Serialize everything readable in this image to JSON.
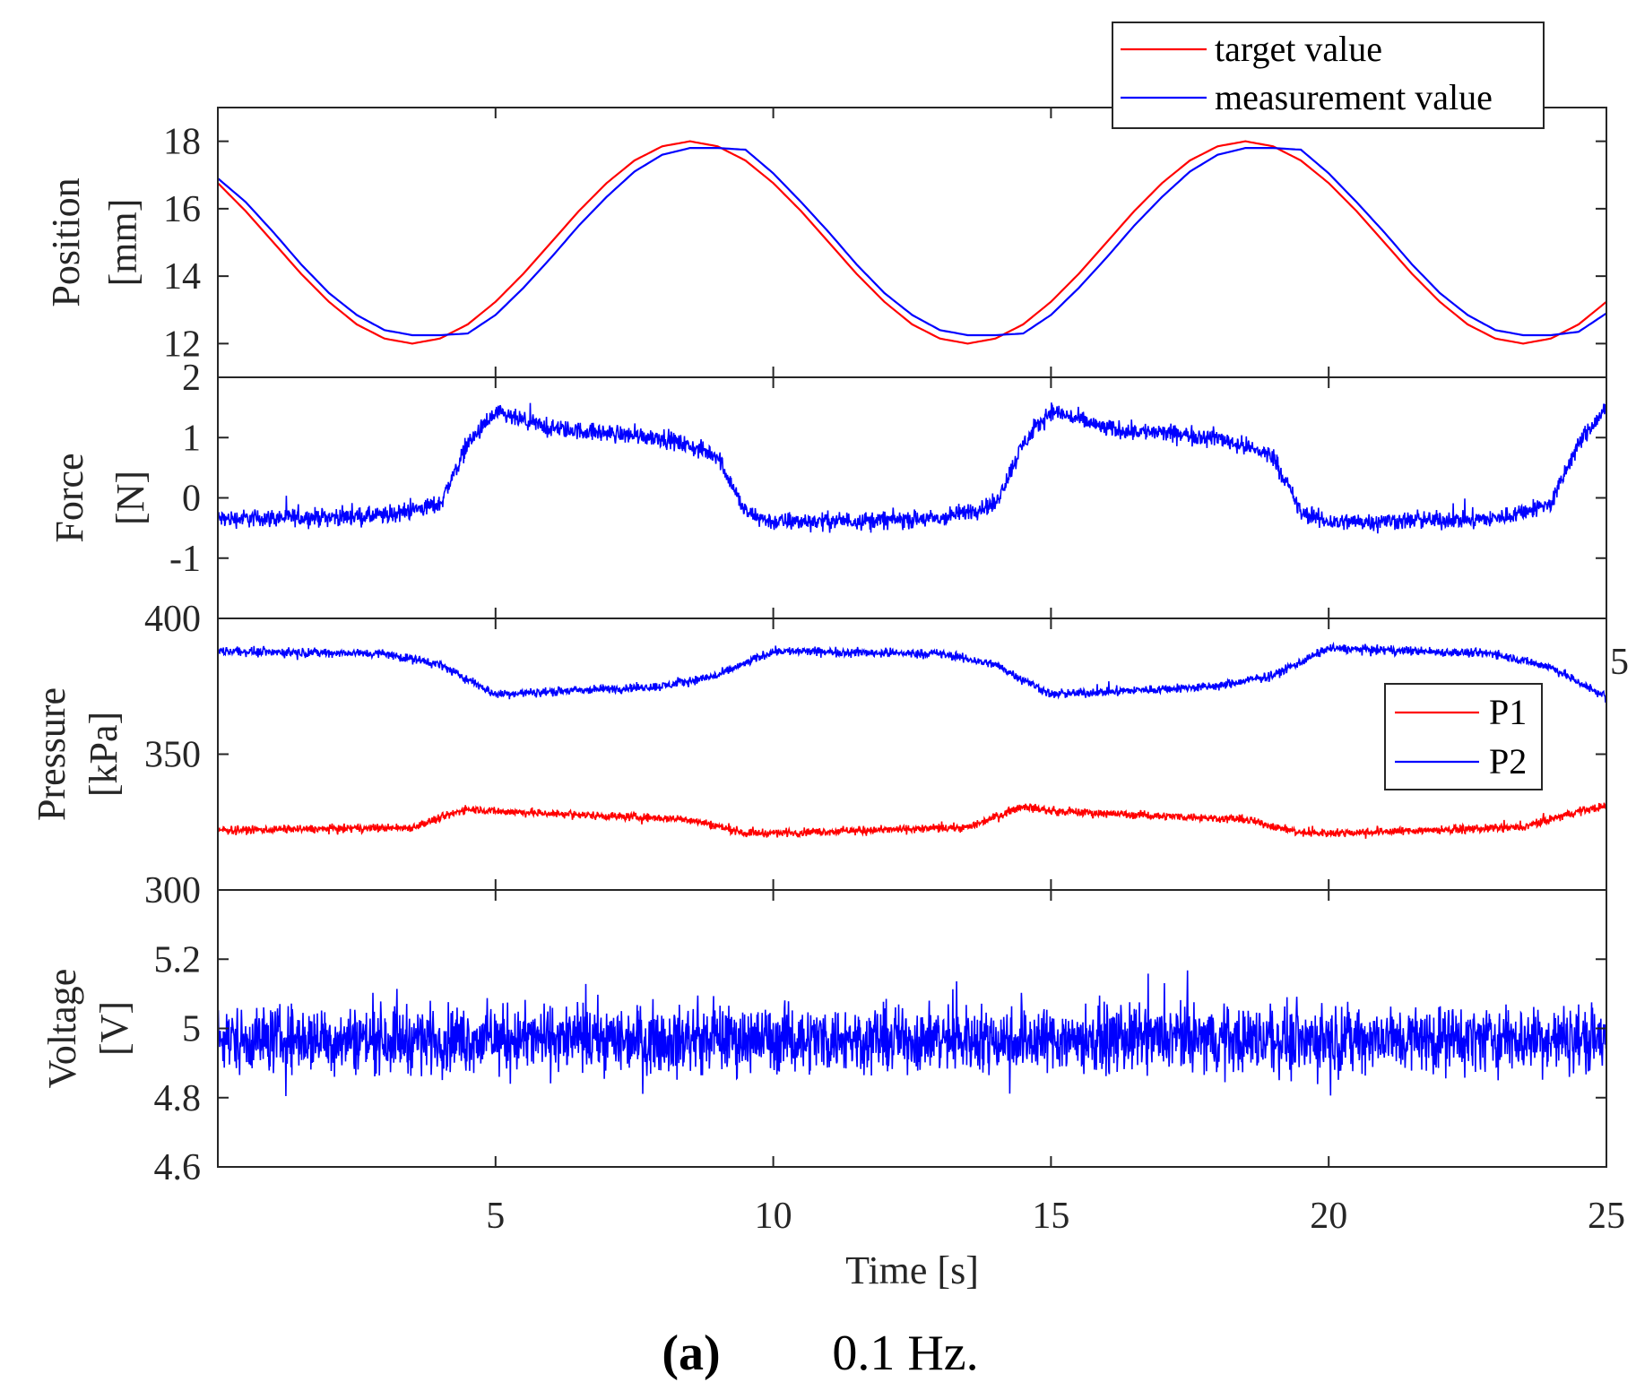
{
  "chart_data": {
    "type": "line",
    "caption": {
      "label": "(a)",
      "text": "0.1 Hz."
    },
    "xlabel": "Time [s]",
    "xlim": [
      0,
      25
    ],
    "xticks": [
      "5",
      "10",
      "15",
      "20",
      "25"
    ],
    "xtick_values": [
      5,
      10,
      15,
      20,
      25
    ],
    "stray_label": "5",
    "panels": [
      {
        "name": "position",
        "ylabel_line1": "Position",
        "ylabel_line2": "[mm]",
        "ylim": [
          11,
          19
        ],
        "yticks": [
          "12",
          "14",
          "16",
          "18"
        ],
        "ytick_values": [
          12,
          14,
          16,
          18
        ],
        "legend": {
          "placement": "top-right",
          "entries": [
            "target value",
            "measurement value"
          ]
        },
        "series": [
          {
            "name": "target value",
            "color": "#ff0000",
            "noise": 0,
            "x_step": 0.5,
            "x_start": 0,
            "values": [
              16.76,
              15.93,
              15,
              14.07,
              13.24,
              12.57,
              12.15,
              12,
              12.15,
              12.57,
              13.24,
              14.07,
              15,
              15.93,
              16.76,
              17.43,
              17.85,
              18,
              17.85,
              17.43,
              16.76,
              15.93,
              15,
              14.07,
              13.24,
              12.57,
              12.15,
              12,
              12.15,
              12.57,
              13.24,
              14.07,
              15,
              15.93,
              16.76,
              17.43,
              17.85,
              18,
              17.85,
              17.43,
              16.76,
              15.93,
              15,
              14.07,
              13.24,
              12.57,
              12.15,
              12,
              12.15,
              12.57,
              13.24
            ]
          },
          {
            "name": "measurement value",
            "color": "#0000ff",
            "noise": 0,
            "x_step": 0.5,
            "x_start": 0,
            "values": [
              16.9,
              16.2,
              15.3,
              14.35,
              13.5,
              12.85,
              12.4,
              12.25,
              12.25,
              12.3,
              12.85,
              13.65,
              14.55,
              15.5,
              16.35,
              17.1,
              17.6,
              17.8,
              17.8,
              17.75,
              17.05,
              16.2,
              15.3,
              14.35,
              13.5,
              12.85,
              12.4,
              12.25,
              12.25,
              12.3,
              12.85,
              13.65,
              14.55,
              15.5,
              16.35,
              17.1,
              17.6,
              17.8,
              17.8,
              17.75,
              17.05,
              16.2,
              15.3,
              14.35,
              13.5,
              12.85,
              12.4,
              12.25,
              12.25,
              12.35,
              12.9
            ]
          }
        ]
      },
      {
        "name": "force",
        "ylabel_line1": "Force",
        "ylabel_line2": "[N]",
        "ylim": [
          -2,
          2
        ],
        "yticks": [
          "-1",
          "0",
          "1",
          "2"
        ],
        "ytick_values": [
          -1,
          0,
          1,
          2
        ],
        "series": [
          {
            "name": "force",
            "color": "#0000ff",
            "noise": 0.22,
            "x": [
              0,
              3,
              4,
              4.5,
              5,
              6,
              8,
              9,
              9.5,
              10,
              13,
              14,
              14.5,
              15,
              16,
              18,
              19,
              19.5,
              20,
              23,
              24,
              24.5,
              25
            ],
            "values": [
              -0.35,
              -0.3,
              -0.1,
              0.9,
              1.4,
              1.15,
              1.0,
              0.7,
              -0.25,
              -0.4,
              -0.35,
              -0.1,
              0.9,
              1.45,
              1.15,
              1.0,
              0.7,
              -0.25,
              -0.4,
              -0.35,
              -0.1,
              0.9,
              1.5
            ]
          }
        ]
      },
      {
        "name": "pressure",
        "ylabel_line1": "Pressure",
        "ylabel_line2": "[kPa]",
        "ylim": [
          300,
          400
        ],
        "yticks": [
          "300",
          "350",
          "400"
        ],
        "ytick_values": [
          300,
          350,
          400
        ],
        "legend": {
          "placement": "center-right",
          "entries": [
            "P1",
            "P2"
          ]
        },
        "series": [
          {
            "name": "P1",
            "color": "#ff0000",
            "noise": 2.2,
            "x": [
              0,
              3.5,
              4.5,
              5,
              8.5,
              9.5,
              10,
              13.5,
              14.5,
              15,
              18.5,
              19.5,
              20,
              23.5,
              24.5,
              25
            ],
            "values": [
              322,
              323,
              330,
              329,
              326,
              321,
              321,
              323,
              331,
              329,
              326,
              321,
              321,
              323,
              329,
              331
            ]
          },
          {
            "name": "P2",
            "color": "#0000ff",
            "noise": 2.4,
            "x": [
              0,
              3,
              4,
              5,
              8,
              9,
              10,
              13,
              14,
              15,
              18,
              19,
              20,
              23,
              24,
              25
            ],
            "values": [
              388,
              387,
              383,
              372,
              375,
              379,
              388,
              387,
              383,
              372,
              375,
              379,
              389,
              387,
              382,
              371
            ]
          }
        ]
      },
      {
        "name": "voltage",
        "ylabel_line1": "Voltage",
        "ylabel_line2": "[V]",
        "ylim": [
          4.6,
          5.4
        ],
        "yticks": [
          "4.6",
          "4.8",
          "5",
          "5.2"
        ],
        "ytick_values": [
          4.6,
          4.8,
          5,
          5.2
        ],
        "series": [
          {
            "name": "voltage",
            "color": "#0000ff",
            "noise": 0.14,
            "x": [
              0,
              25
            ],
            "values": [
              4.97,
              4.97
            ]
          }
        ]
      }
    ]
  }
}
